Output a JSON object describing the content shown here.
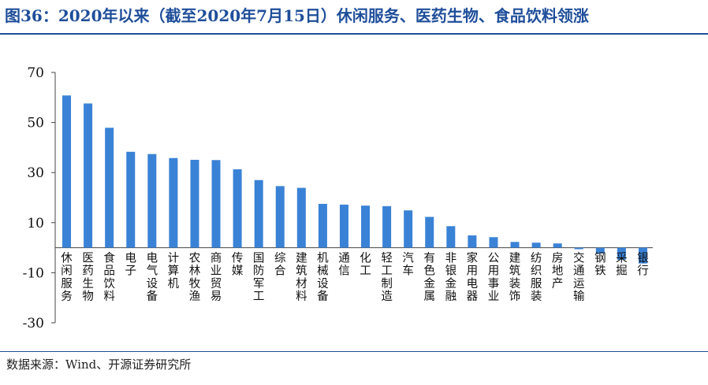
{
  "figure": {
    "title": "图36：2020年以来（截至2020年7月15日）休闲服务、医药生物、食品饮料领涨",
    "source": "数据来源：Wind、开源证券研究所"
  },
  "colors": {
    "bar": "#3a82d6",
    "axis": "#444444",
    "accent": "#1f4e9a"
  },
  "chart_data": {
    "type": "bar",
    "title": "",
    "xlabel": "",
    "ylabel": "",
    "ylim": [
      -30,
      70
    ],
    "yticks": [
      70,
      50,
      30,
      10,
      -10,
      -30
    ],
    "grid": false,
    "legend": "none",
    "categories": [
      "休闲服务",
      "医药生物",
      "食品饮料",
      "电子",
      "电气设备",
      "计算机",
      "农林牧渔",
      "商业贸易",
      "传媒",
      "国防军工",
      "综合",
      "建筑材料",
      "机械设备",
      "通信",
      "化工",
      "轻工制造",
      "汽车",
      "有色金属",
      "非银金融",
      "家用电器",
      "公用事业",
      "建筑装饰",
      "纺织服装",
      "房地产",
      "交通运输",
      "钢铁",
      "采掘",
      "银行"
    ],
    "values": [
      60.8,
      57.6,
      47.9,
      38.3,
      37.4,
      35.8,
      35.1,
      35.0,
      31.3,
      27.0,
      24.6,
      23.9,
      17.5,
      17.2,
      16.8,
      16.6,
      14.9,
      12.3,
      8.6,
      4.9,
      4.2,
      2.3,
      2.0,
      1.7,
      -0.6,
      -2.3,
      -4.8,
      -6.3
    ]
  }
}
